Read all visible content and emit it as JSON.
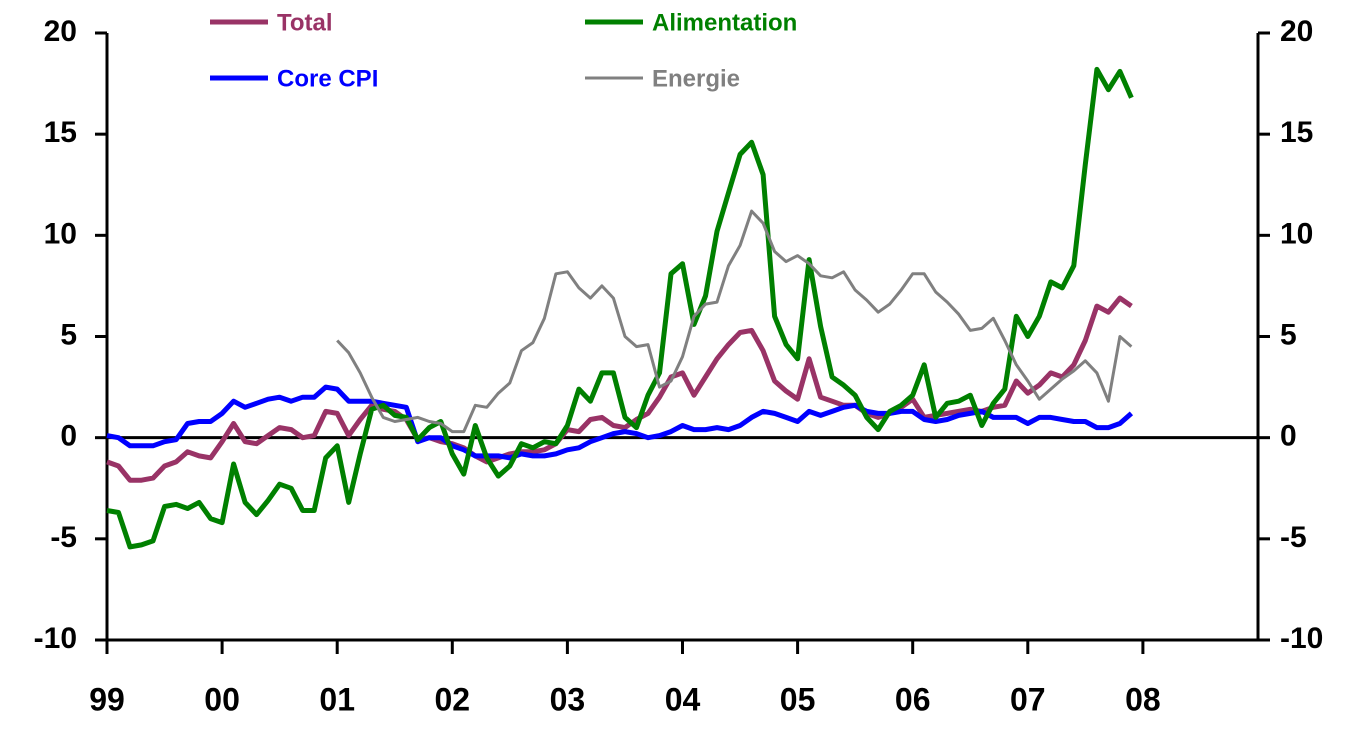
{
  "chart_data": {
    "type": "line",
    "x": [
      1999.0,
      1999.1,
      1999.2,
      1999.3,
      1999.4,
      1999.5,
      1999.6,
      1999.7,
      1999.8,
      1999.9,
      2000.0,
      2000.1,
      2000.2,
      2000.3,
      2000.4,
      2000.5,
      2000.6,
      2000.7,
      2000.8,
      2000.9,
      2001.0,
      2001.1,
      2001.2,
      2001.3,
      2001.4,
      2001.5,
      2001.6,
      2001.7,
      2001.8,
      2001.9,
      2002.0,
      2002.1,
      2002.2,
      2002.3,
      2002.4,
      2002.5,
      2002.6,
      2002.7,
      2002.8,
      2002.9,
      2003.0,
      2003.1,
      2003.2,
      2003.3,
      2003.4,
      2003.5,
      2003.6,
      2003.7,
      2003.8,
      2003.9,
      2004.0,
      2004.1,
      2004.2,
      2004.3,
      2004.4,
      2004.5,
      2004.6,
      2004.7,
      2004.8,
      2004.9,
      2005.0,
      2005.1,
      2005.2,
      2005.3,
      2005.4,
      2005.5,
      2005.6,
      2005.7,
      2005.8,
      2005.9,
      2006.0,
      2006.1,
      2006.2,
      2006.3,
      2006.4,
      2006.5,
      2006.6,
      2006.7,
      2006.8,
      2006.9,
      2007.0,
      2007.1,
      2007.2,
      2007.3,
      2007.4,
      2007.5,
      2007.6,
      2007.7,
      2007.8,
      2007.9
    ],
    "series": [
      {
        "name": "Total",
        "color": "#993366",
        "width": 5,
        "values": [
          -1.2,
          -1.4,
          -2.1,
          -2.1,
          -2.0,
          -1.4,
          -1.2,
          -0.7,
          -0.9,
          -1.0,
          -0.2,
          0.7,
          -0.2,
          -0.3,
          0.1,
          0.5,
          0.4,
          0.0,
          0.1,
          1.3,
          1.2,
          0.1,
          0.9,
          1.6,
          1.4,
          1.3,
          0.9,
          -0.1,
          0.0,
          -0.2,
          -0.3,
          -0.5,
          -0.9,
          -1.2,
          -1.0,
          -0.8,
          -0.7,
          -0.7,
          -0.6,
          -0.3,
          0.4,
          0.3,
          0.9,
          1.0,
          0.6,
          0.5,
          0.9,
          1.2,
          2.0,
          3.0,
          3.2,
          2.1,
          3.0,
          3.9,
          4.6,
          5.2,
          5.3,
          4.3,
          2.8,
          2.3,
          1.9,
          3.9,
          2.0,
          1.8,
          1.6,
          1.6,
          1.2,
          1.0,
          1.2,
          1.5,
          1.9,
          1.0,
          1.1,
          1.2,
          1.3,
          1.4,
          1.3,
          1.5,
          1.6,
          2.8,
          2.2,
          2.6,
          3.2,
          3.0,
          3.6,
          4.8,
          6.5,
          6.2,
          6.9,
          6.5
        ]
      },
      {
        "name": "Core CPI",
        "color": "#0000ff",
        "width": 5,
        "values": [
          0.1,
          0.0,
          -0.4,
          -0.4,
          -0.4,
          -0.2,
          -0.1,
          0.7,
          0.8,
          0.8,
          1.2,
          1.8,
          1.5,
          1.7,
          1.9,
          2.0,
          1.8,
          2.0,
          2.0,
          2.5,
          2.4,
          1.8,
          1.8,
          1.8,
          1.7,
          1.6,
          1.5,
          -0.2,
          0.0,
          0.0,
          -0.4,
          -0.6,
          -0.9,
          -0.9,
          -0.9,
          -1.0,
          -0.8,
          -0.9,
          -0.9,
          -0.8,
          -0.6,
          -0.5,
          -0.2,
          0.0,
          0.2,
          0.3,
          0.2,
          0.0,
          0.1,
          0.3,
          0.6,
          0.4,
          0.4,
          0.5,
          0.4,
          0.6,
          1.0,
          1.3,
          1.2,
          1.0,
          0.8,
          1.3,
          1.1,
          1.3,
          1.5,
          1.6,
          1.3,
          1.2,
          1.2,
          1.3,
          1.3,
          0.9,
          0.8,
          0.9,
          1.1,
          1.2,
          1.3,
          1.0,
          1.0,
          1.0,
          0.7,
          1.0,
          1.0,
          0.9,
          0.8,
          0.8,
          0.5,
          0.5,
          0.7,
          1.2
        ]
      },
      {
        "name": "Alimentation",
        "color": "#008000",
        "width": 5,
        "values": [
          -3.6,
          -3.7,
          -5.4,
          -5.3,
          -5.1,
          -3.4,
          -3.3,
          -3.5,
          -3.2,
          -4.0,
          -4.2,
          -1.3,
          -3.2,
          -3.8,
          -3.1,
          -2.3,
          -2.5,
          -3.6,
          -3.6,
          -1.0,
          -0.4,
          -3.2,
          -0.8,
          1.4,
          1.6,
          1.1,
          1.0,
          -0.1,
          0.5,
          0.8,
          -0.8,
          -1.8,
          0.6,
          -1.0,
          -1.9,
          -1.4,
          -0.3,
          -0.5,
          -0.2,
          -0.3,
          0.6,
          2.4,
          1.8,
          3.2,
          3.2,
          1.0,
          0.5,
          2.1,
          3.2,
          8.1,
          8.6,
          5.6,
          7.0,
          10.2,
          12.1,
          14.0,
          14.6,
          13.0,
          6.0,
          4.6,
          3.9,
          8.8,
          5.5,
          3.0,
          2.6,
          2.1,
          1.0,
          0.4,
          1.3,
          1.6,
          2.1,
          3.6,
          1.0,
          1.7,
          1.8,
          2.1,
          0.6,
          1.7,
          2.4,
          6.0,
          5.0,
          6.0,
          7.7,
          7.4,
          8.5,
          13.5,
          18.2,
          17.2,
          18.1,
          16.8
        ]
      },
      {
        "name": "Energie",
        "color": "#808080",
        "width": 3,
        "values": [
          null,
          null,
          null,
          null,
          null,
          null,
          null,
          null,
          null,
          null,
          null,
          null,
          null,
          null,
          null,
          null,
          null,
          null,
          null,
          null,
          4.8,
          4.2,
          3.2,
          2.0,
          1.0,
          0.8,
          0.9,
          1.0,
          0.8,
          0.7,
          0.3,
          0.3,
          1.6,
          1.5,
          2.2,
          2.7,
          4.3,
          4.7,
          5.9,
          8.1,
          8.2,
          7.4,
          6.9,
          7.5,
          6.9,
          5.0,
          4.5,
          4.6,
          2.5,
          2.8,
          4.0,
          6.0,
          6.6,
          6.7,
          8.5,
          9.5,
          11.2,
          10.6,
          9.2,
          8.7,
          9.0,
          8.6,
          8.0,
          7.9,
          8.2,
          7.3,
          6.8,
          6.2,
          6.6,
          7.3,
          8.1,
          8.1,
          7.2,
          6.7,
          6.1,
          5.3,
          5.4,
          5.9,
          4.8,
          3.6,
          2.8,
          1.9,
          2.4,
          2.9,
          3.3,
          3.8,
          3.2,
          1.8,
          5.0,
          4.5
        ]
      }
    ],
    "xlim": [
      1999,
      2009
    ],
    "xticks": [
      {
        "value": 1999,
        "label": "99"
      },
      {
        "value": 2000,
        "label": "00"
      },
      {
        "value": 2001,
        "label": "01"
      },
      {
        "value": 2002,
        "label": "02"
      },
      {
        "value": 2003,
        "label": "03"
      },
      {
        "value": 2004,
        "label": "04"
      },
      {
        "value": 2005,
        "label": "05"
      },
      {
        "value": 2006,
        "label": "06"
      },
      {
        "value": 2007,
        "label": "07"
      },
      {
        "value": 2008,
        "label": "08"
      }
    ],
    "ylim": [
      -10,
      20
    ],
    "yticks": [
      -10,
      -5,
      0,
      5,
      10,
      15,
      20
    ],
    "y2lim": [
      -10,
      20
    ],
    "y2ticks": [
      -10,
      -5,
      0,
      5,
      10,
      15,
      20
    ]
  }
}
